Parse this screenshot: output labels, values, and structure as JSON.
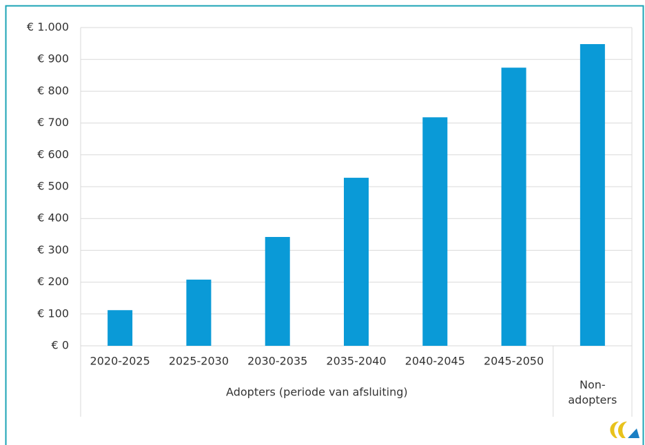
{
  "chart_data": {
    "type": "bar",
    "categories": [
      "2020-2025",
      "2025-2030",
      "2030-2035",
      "2035-2040",
      "2040-2045",
      "2045-2050",
      null
    ],
    "groups": [
      "Adopters (periode van afsluiting)",
      "Non-adopters"
    ],
    "values": [
      112,
      208,
      342,
      528,
      718,
      874,
      948
    ],
    "color": "#0a9ad7",
    "ylim": [
      0,
      1000
    ],
    "yticks": [
      {
        "value": 0,
        "label": "€ 0"
      },
      {
        "value": 100,
        "label": "€ 100"
      },
      {
        "value": 200,
        "label": "€ 200"
      },
      {
        "value": 300,
        "label": "€ 300"
      },
      {
        "value": 400,
        "label": "€ 400"
      },
      {
        "value": 500,
        "label": "€ 500"
      },
      {
        "value": 600,
        "label": "€ 600"
      },
      {
        "value": 700,
        "label": "€ 700"
      },
      {
        "value": 800,
        "label": "€ 800"
      },
      {
        "value": 900,
        "label": "€ 900"
      },
      {
        "value": 1000,
        "label": "€ 1.000"
      }
    ],
    "grid": true
  }
}
